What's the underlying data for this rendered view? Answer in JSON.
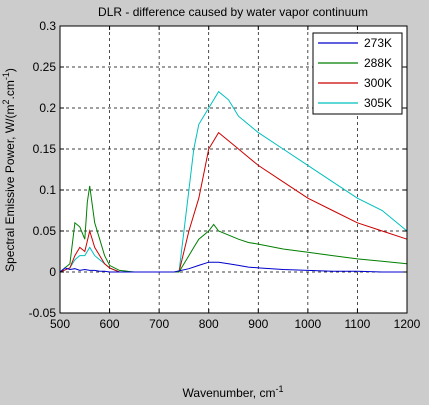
{
  "chart_data": {
    "type": "line",
    "title": "DLR - difference caused by water vapor continuum",
    "xlabel": "Wavenumber, cm",
    "xlabel_sup": "-1",
    "ylabel_parts": [
      "Spectral Emissive Power, W/(m",
      "2",
      ".cm",
      "-1",
      ")"
    ],
    "xlim": [
      500,
      1200
    ],
    "ylim": [
      -0.05,
      0.3
    ],
    "xticks": [
      500,
      600,
      700,
      800,
      900,
      1000,
      1100,
      1200
    ],
    "xtick_labels": [
      "500",
      "600",
      "700",
      "800",
      "900",
      "1000",
      "1100",
      "1200"
    ],
    "yticks": [
      -0.05,
      0,
      0.05,
      0.1,
      0.15,
      0.2,
      0.25,
      0.3
    ],
    "ytick_labels": [
      "-0.05",
      "0",
      "0.05",
      "0.1",
      "0.15",
      "0.2",
      "0.25",
      "0.3"
    ],
    "grid": true,
    "legend_position": "top-right",
    "series": [
      {
        "name": "273K",
        "color": "#0000cc",
        "x": [
          500,
          510,
          520,
          530,
          540,
          550,
          560,
          570,
          580,
          590,
          600,
          620,
          650,
          700,
          730,
          760,
          780,
          800,
          820,
          840,
          860,
          880,
          900,
          950,
          1000,
          1050,
          1100,
          1150,
          1200
        ],
        "y": [
          0.0,
          0.005,
          0.003,
          0.004,
          0.002,
          0.003,
          0.002,
          0.002,
          0.001,
          0.001,
          0.0,
          0.0,
          0.0,
          0.0,
          0.0,
          0.004,
          0.008,
          0.012,
          0.012,
          0.01,
          0.008,
          0.006,
          0.005,
          0.003,
          0.002,
          0.001,
          0.001,
          0.0,
          0.0
        ]
      },
      {
        "name": "288K",
        "color": "#007f00",
        "x": [
          500,
          520,
          530,
          540,
          550,
          555,
          560,
          570,
          580,
          590,
          600,
          620,
          650,
          700,
          740,
          760,
          770,
          780,
          800,
          810,
          820,
          840,
          860,
          880,
          900,
          950,
          1000,
          1050,
          1100,
          1150,
          1200
        ],
        "y": [
          0.0,
          0.01,
          0.06,
          0.055,
          0.04,
          0.085,
          0.105,
          0.06,
          0.04,
          0.02,
          0.008,
          0.002,
          0.0,
          0.0,
          0.0,
          0.02,
          0.03,
          0.04,
          0.05,
          0.058,
          0.05,
          0.045,
          0.04,
          0.036,
          0.034,
          0.028,
          0.024,
          0.02,
          0.016,
          0.013,
          0.01
        ]
      },
      {
        "name": "300K",
        "color": "#cc0000",
        "x": [
          500,
          520,
          530,
          540,
          550,
          560,
          570,
          580,
          590,
          600,
          620,
          650,
          700,
          740,
          760,
          780,
          790,
          800,
          810,
          820,
          830,
          840,
          850,
          860,
          880,
          900,
          950,
          1000,
          1050,
          1100,
          1150,
          1200
        ],
        "y": [
          0.0,
          0.005,
          0.02,
          0.03,
          0.025,
          0.05,
          0.03,
          0.02,
          0.01,
          0.005,
          0.0,
          0.0,
          0.0,
          0.0,
          0.05,
          0.09,
          0.12,
          0.15,
          0.16,
          0.17,
          0.165,
          0.16,
          0.155,
          0.15,
          0.14,
          0.13,
          0.11,
          0.09,
          0.075,
          0.06,
          0.05,
          0.04
        ]
      },
      {
        "name": "305K",
        "color": "#00bfbf",
        "x": [
          500,
          520,
          530,
          540,
          550,
          560,
          570,
          580,
          590,
          600,
          620,
          650,
          700,
          740,
          760,
          770,
          780,
          800,
          810,
          820,
          830,
          840,
          850,
          860,
          870,
          880,
          900,
          950,
          1000,
          1050,
          1100,
          1150,
          1200
        ],
        "y": [
          0.0,
          0.005,
          0.015,
          0.02,
          0.02,
          0.03,
          0.02,
          0.015,
          0.01,
          0.005,
          0.0,
          0.0,
          0.0,
          0.0,
          0.1,
          0.15,
          0.18,
          0.2,
          0.21,
          0.22,
          0.215,
          0.21,
          0.2,
          0.19,
          0.185,
          0.18,
          0.17,
          0.15,
          0.13,
          0.11,
          0.09,
          0.075,
          0.05
        ]
      }
    ]
  }
}
